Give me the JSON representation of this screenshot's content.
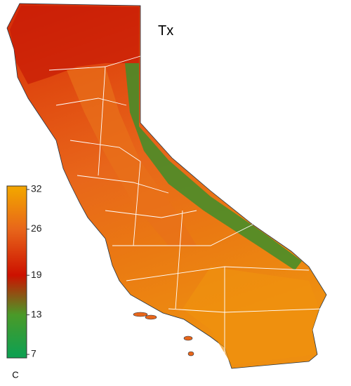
{
  "map": {
    "title": "Tx",
    "colorbar": {
      "ticks": [
        32,
        26,
        19,
        13,
        7
      ],
      "lim": [
        7,
        32
      ],
      "unit": "C",
      "colors": [
        "#f2a300",
        "#e8661a",
        "#cc1100",
        "#4a9a28",
        "#10a050"
      ]
    }
  }
}
